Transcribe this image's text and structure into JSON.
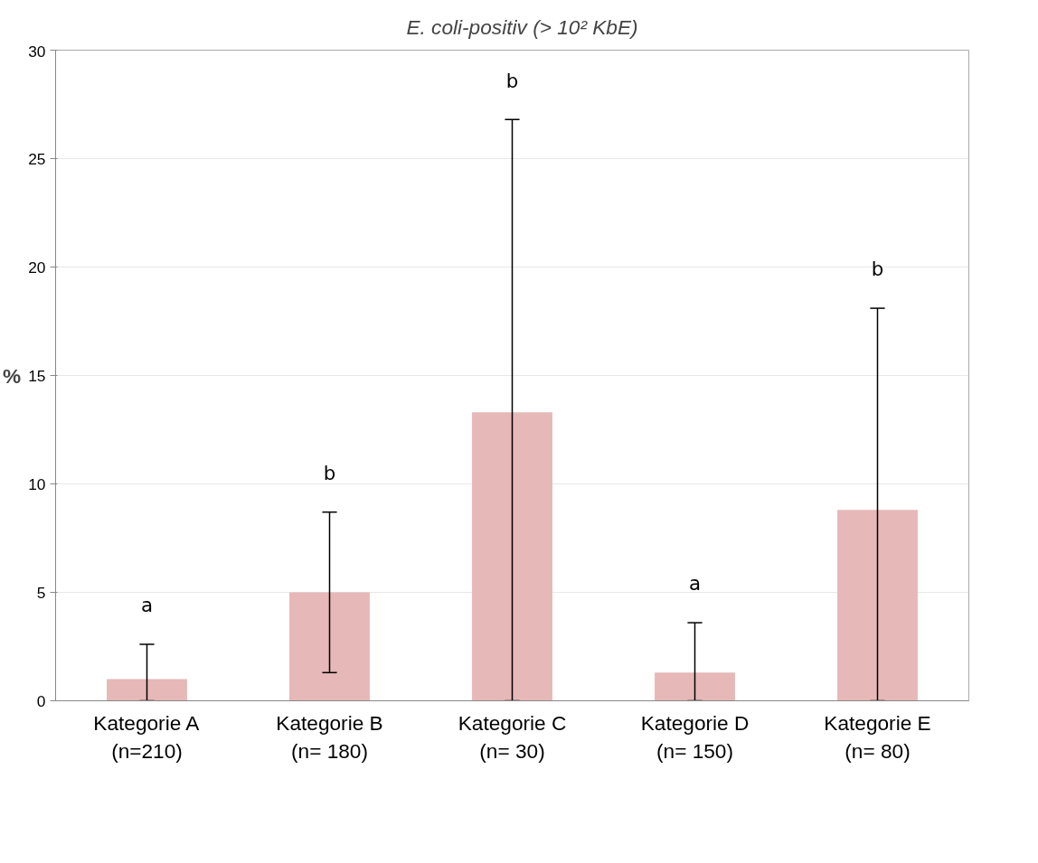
{
  "chart_data": {
    "type": "bar",
    "categories": [
      "Kategorie A\n(n=210)",
      "Kategorie B\n(n= 180)",
      "Kategorie C\n(n= 30)",
      "Kategorie D\n(n= 150)",
      "Kategorie E\n(n= 80)"
    ],
    "series": [
      {
        "name": "E. coli-positiv (> 10² KbE)",
        "color": "#e6b8b7",
        "values": [
          1.0,
          5.0,
          13.3,
          1.3,
          8.8
        ],
        "errors": [
          [
            0,
            2.6
          ],
          3.7,
          [
            0,
            26.8
          ],
          [
            0,
            3.6
          ],
          [
            0,
            18.1
          ]
        ]
      }
    ],
    "ylabel": "%",
    "ylim": [
      0,
      30
    ],
    "yticks": [
      0,
      5,
      10,
      15,
      20,
      25,
      30
    ],
    "grid": "y",
    "legend": "top",
    "annotations": [
      "a",
      "b",
      "b",
      "a",
      "b"
    ]
  }
}
